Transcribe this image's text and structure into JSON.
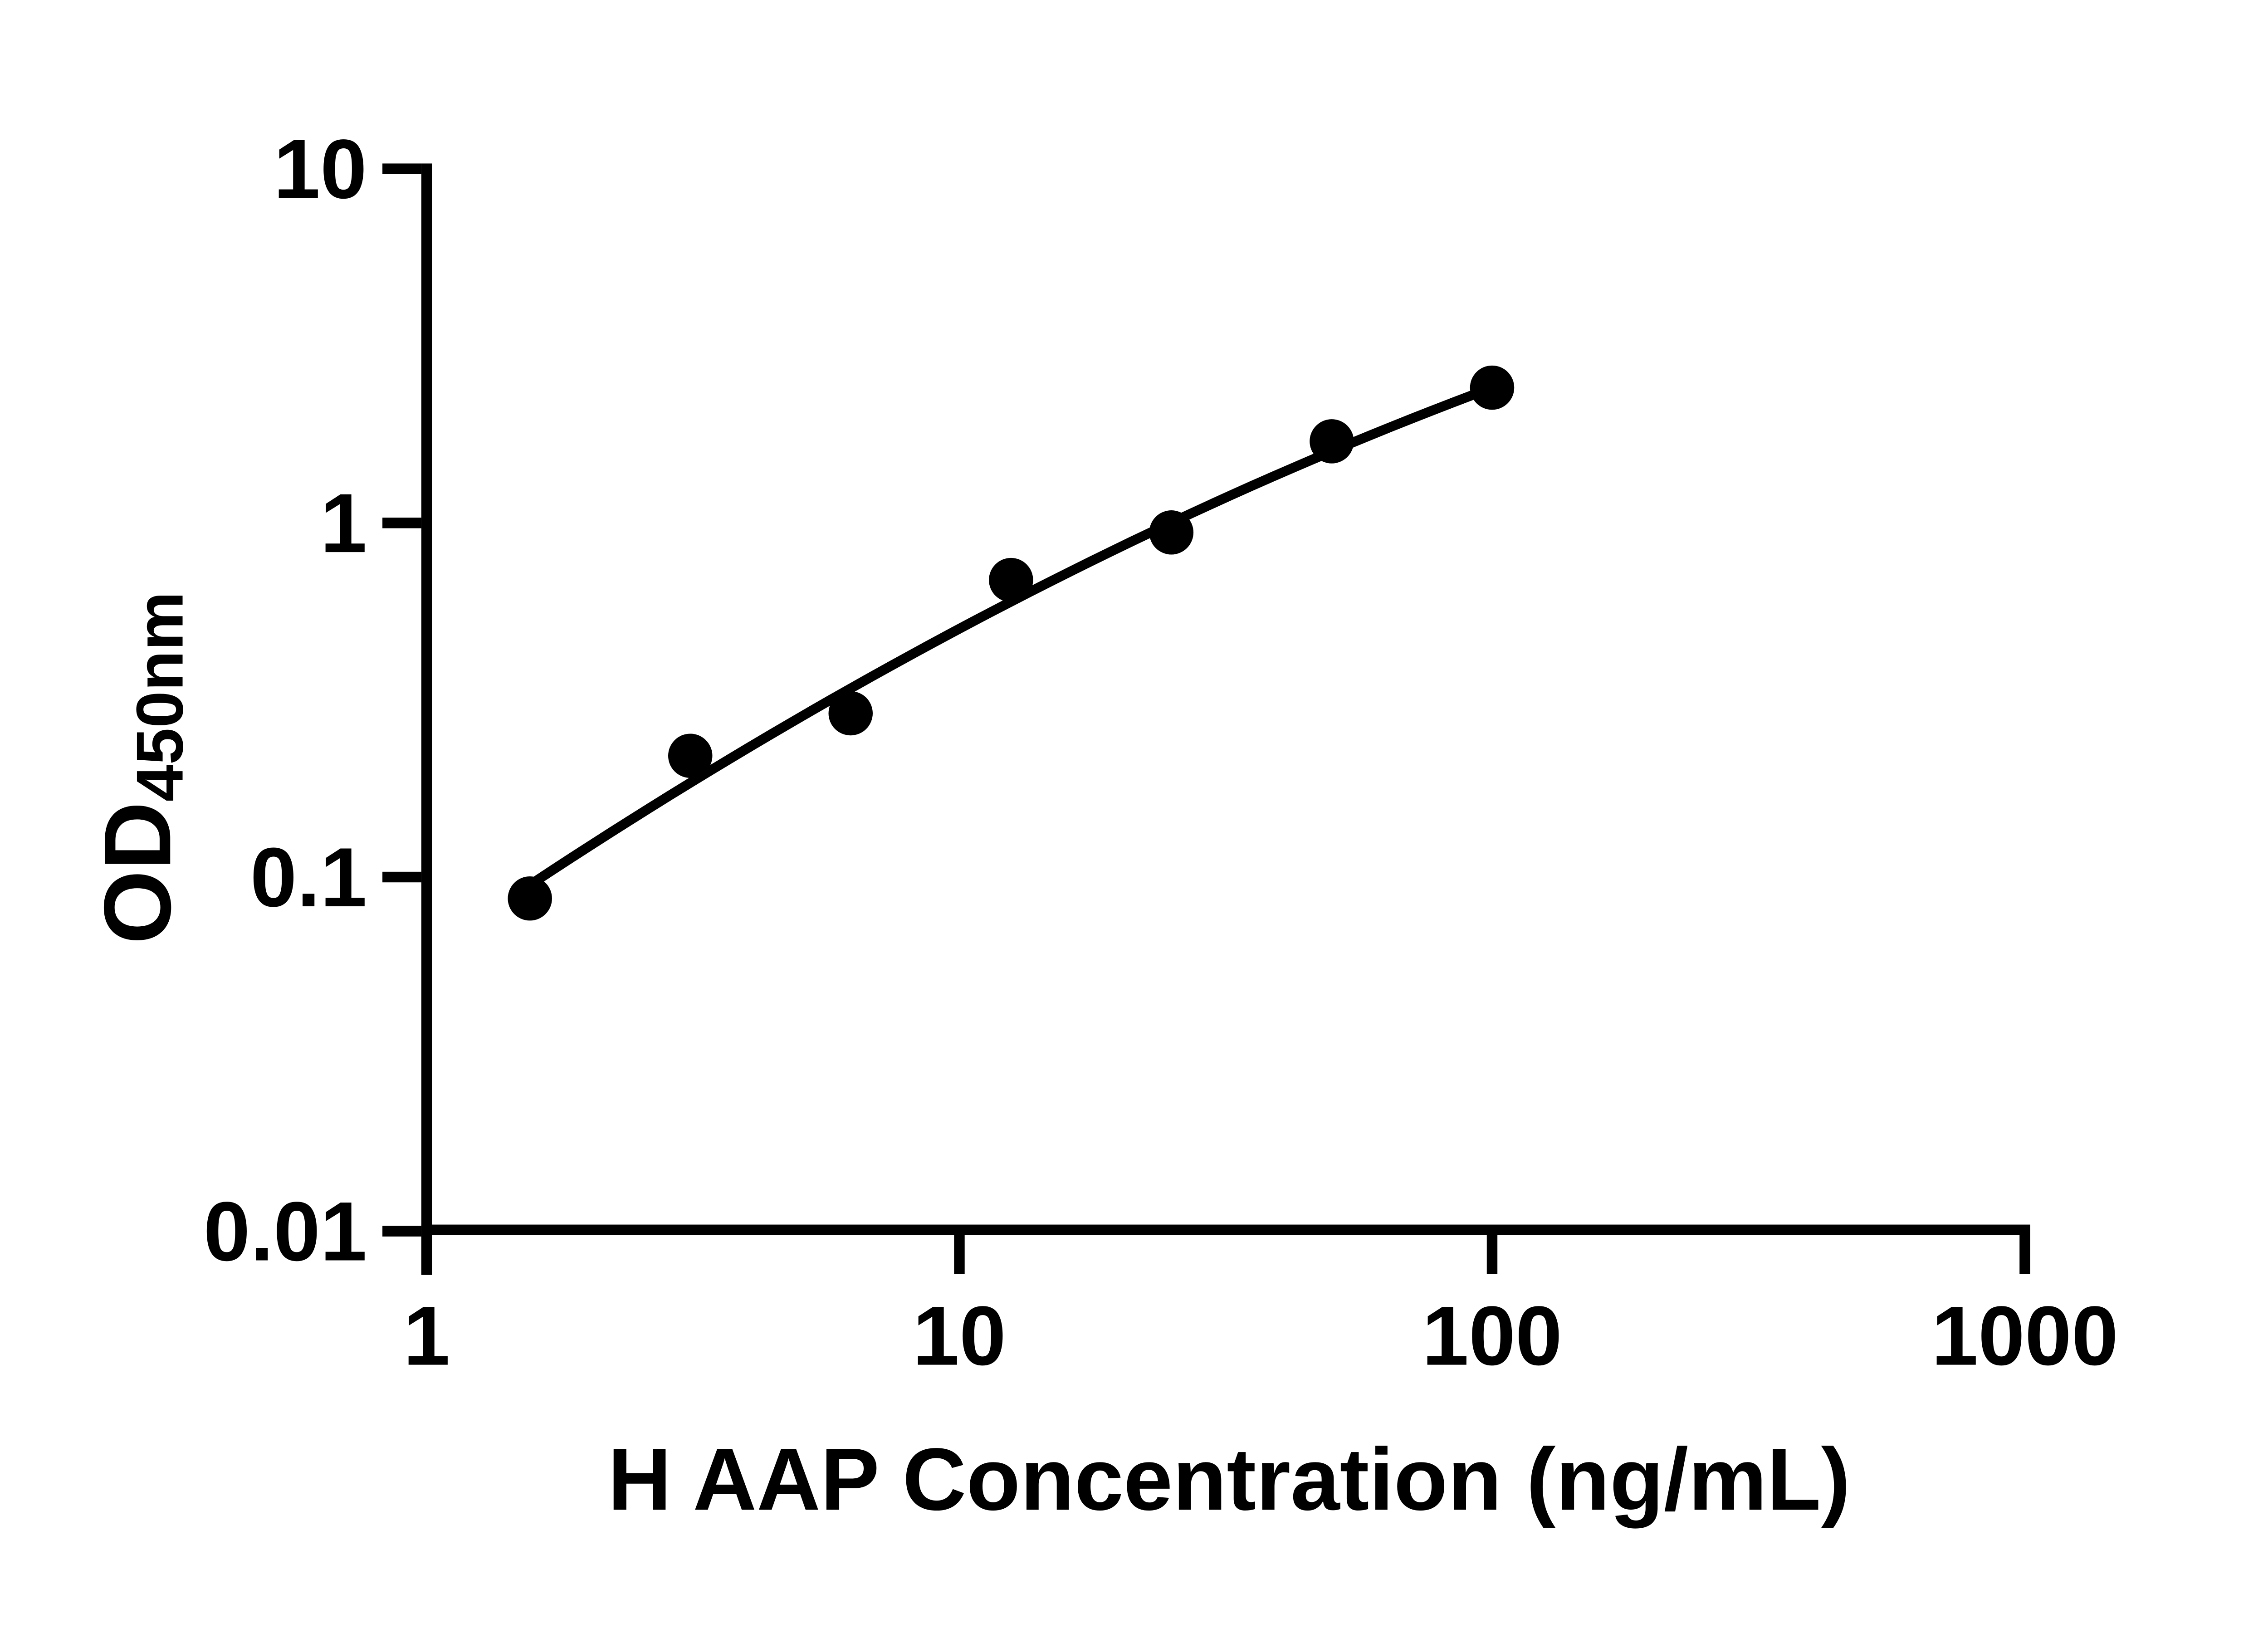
{
  "page": {
    "background_color": "#ffffff",
    "foreground_color": "#000000"
  },
  "chart_data": {
    "type": "scatter",
    "title": "",
    "xlabel": "H AAP Concentration (ng/mL)",
    "ylabel": "OD",
    "ylabel_subscript": "450nm",
    "x_scale": "log10",
    "y_scale": "log10",
    "xlim": [
      1,
      1000
    ],
    "ylim": [
      0.01,
      10
    ],
    "x_ticks": [
      1,
      10,
      100,
      1000
    ],
    "x_tick_labels": [
      "1",
      "10",
      "100",
      "1000"
    ],
    "y_ticks": [
      10,
      1,
      0.1,
      0.01
    ],
    "y_tick_labels": [
      "10",
      "1",
      "0.1",
      "0.01"
    ],
    "grid": false,
    "legend": false,
    "marker_color": "#000000",
    "line_color": "#000000",
    "series": [
      {
        "name": "standard-curve-points",
        "marker": "filled-circle",
        "x": [
          1.5625,
          3.125,
          6.25,
          12.5,
          25,
          50,
          100
        ],
        "y": [
          0.087,
          0.22,
          0.29,
          0.69,
          0.94,
          1.7,
          2.41
        ]
      }
    ],
    "fit_curve": {
      "description": "smooth fit through points, log10(y) = a*log10(x)^2 + b*log10(x) + c",
      "a": -0.1199,
      "b": 1.0405,
      "c": -1.2194,
      "lx_start": 0.194,
      "lx_end": 2.0
    }
  }
}
